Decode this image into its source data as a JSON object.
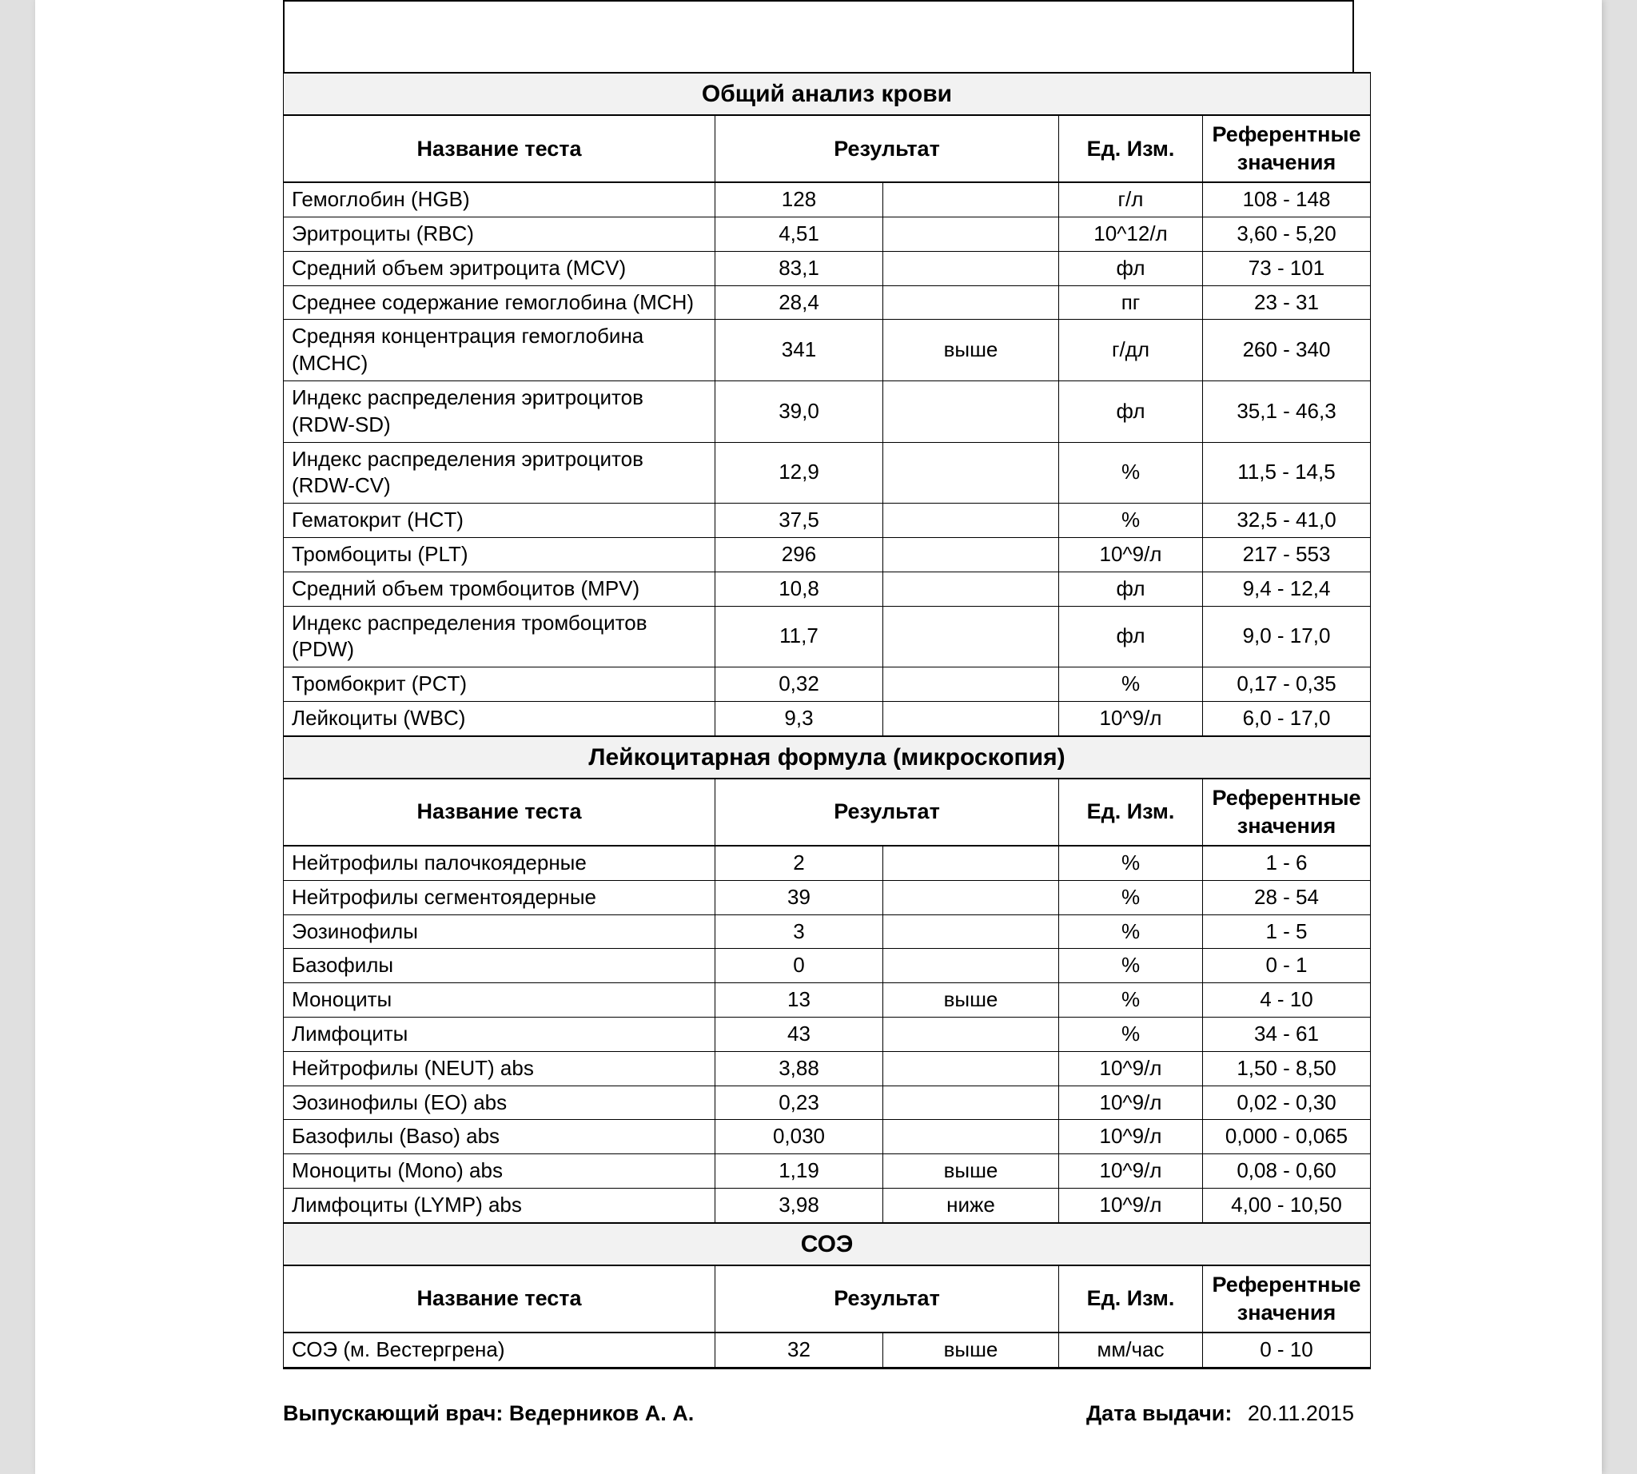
{
  "sections": [
    {
      "title": "Общий анализ крови",
      "headers": {
        "name": "Название теста",
        "result": "Результат",
        "unit": "Ед. Изм.",
        "ref": "Референтные значения"
      },
      "rows": [
        {
          "name": "Гемоглобин (HGB)",
          "result": "128",
          "flag": "",
          "unit": "г/л",
          "ref": "108 - 148"
        },
        {
          "name": "Эритроциты (RBC)",
          "result": "4,51",
          "flag": "",
          "unit": "10^12/л",
          "ref": "3,60 - 5,20"
        },
        {
          "name": "Средний объем эритроцита (MCV)",
          "result": "83,1",
          "flag": "",
          "unit": "фл",
          "ref": "73 - 101"
        },
        {
          "name": "Среднее содержание гемоглобина (MCH)",
          "result": "28,4",
          "flag": "",
          "unit": "пг",
          "ref": "23 - 31"
        },
        {
          "name": "Средняя концентрация гемоглобина (MCHC)",
          "result": "341",
          "flag": "выше",
          "unit": "г/дл",
          "ref": "260 - 340"
        },
        {
          "name": "Индекс распределения эритроцитов (RDW-SD)",
          "result": "39,0",
          "flag": "",
          "unit": "фл",
          "ref": "35,1 - 46,3"
        },
        {
          "name": "Индекс распределения эритроцитов (RDW-CV)",
          "result": "12,9",
          "flag": "",
          "unit": "%",
          "ref": "11,5 - 14,5"
        },
        {
          "name": "Гематокрит (HCT)",
          "result": "37,5",
          "flag": "",
          "unit": "%",
          "ref": "32,5 - 41,0"
        },
        {
          "name": "Тромбоциты (PLT)",
          "result": "296",
          "flag": "",
          "unit": "10^9/л",
          "ref": "217 - 553"
        },
        {
          "name": "Средний объем тромбоцитов (MPV)",
          "result": "10,8",
          "flag": "",
          "unit": "фл",
          "ref": "9,4 - 12,4"
        },
        {
          "name": "Индекс распределения тромбоцитов (PDW)",
          "result": "11,7",
          "flag": "",
          "unit": "фл",
          "ref": "9,0 - 17,0"
        },
        {
          "name": "Тромбокрит (PCT)",
          "result": "0,32",
          "flag": "",
          "unit": "%",
          "ref": "0,17 - 0,35"
        },
        {
          "name": "Лейкоциты (WBC)",
          "result": "9,3",
          "flag": "",
          "unit": "10^9/л",
          "ref": "6,0 - 17,0"
        }
      ]
    },
    {
      "title": "Лейкоцитарная формула (микроскопия)",
      "headers": {
        "name": "Название теста",
        "result": "Результат",
        "unit": "Ед. Изм.",
        "ref": "Референтные значения"
      },
      "rows": [
        {
          "name": "Нейтрофилы палочкоядерные",
          "result": "2",
          "flag": "",
          "unit": "%",
          "ref": "1 - 6"
        },
        {
          "name": "Нейтрофилы сегментоядерные",
          "result": "39",
          "flag": "",
          "unit": "%",
          "ref": "28 - 54"
        },
        {
          "name": "Эозинофилы",
          "result": "3",
          "flag": "",
          "unit": "%",
          "ref": "1 - 5"
        },
        {
          "name": "Базофилы",
          "result": "0",
          "flag": "",
          "unit": "%",
          "ref": "0 - 1"
        },
        {
          "name": "Моноциты",
          "result": "13",
          "flag": "выше",
          "unit": "%",
          "ref": "4 - 10"
        },
        {
          "name": "Лимфоциты",
          "result": "43",
          "flag": "",
          "unit": "%",
          "ref": "34 - 61"
        },
        {
          "name": "Нейтрофилы (NEUT) abs",
          "result": "3,88",
          "flag": "",
          "unit": "10^9/л",
          "ref": "1,50 - 8,50"
        },
        {
          "name": "Эозинофилы (EO) abs",
          "result": "0,23",
          "flag": "",
          "unit": "10^9/л",
          "ref": "0,02 - 0,30"
        },
        {
          "name": "Базофилы (Baso) abs",
          "result": "0,030",
          "flag": "",
          "unit": "10^9/л",
          "ref": "0,000 - 0,065"
        },
        {
          "name": "Моноциты (Mono) abs",
          "result": "1,19",
          "flag": "выше",
          "unit": "10^9/л",
          "ref": "0,08 - 0,60"
        },
        {
          "name": "Лимфоциты (LYMP) abs",
          "result": "3,98",
          "flag": "ниже",
          "unit": "10^9/л",
          "ref": "4,00 - 10,50"
        }
      ]
    },
    {
      "title": "СОЭ",
      "headers": {
        "name": "Название теста",
        "result": "Результат",
        "unit": "Ед. Изм.",
        "ref": "Референтные значения"
      },
      "rows": [
        {
          "name": "СОЭ (м. Вестергрена)",
          "result": "32",
          "flag": "выше",
          "unit": "мм/час",
          "ref": "0 - 10"
        }
      ]
    }
  ],
  "footer": {
    "doctor_label": "Выпускающий врач:",
    "doctor_name": "Ведерников А. А.",
    "date_label": "Дата выдачи:",
    "date_value": "20.11.2015"
  },
  "style": {
    "bg": "#e0e0e0",
    "page_bg": "#ffffff",
    "section_bg": "#f2f2f2",
    "border_color": "#000000",
    "font_family": "Arial",
    "cell_fontsize": 26,
    "title_fontsize": 30
  }
}
